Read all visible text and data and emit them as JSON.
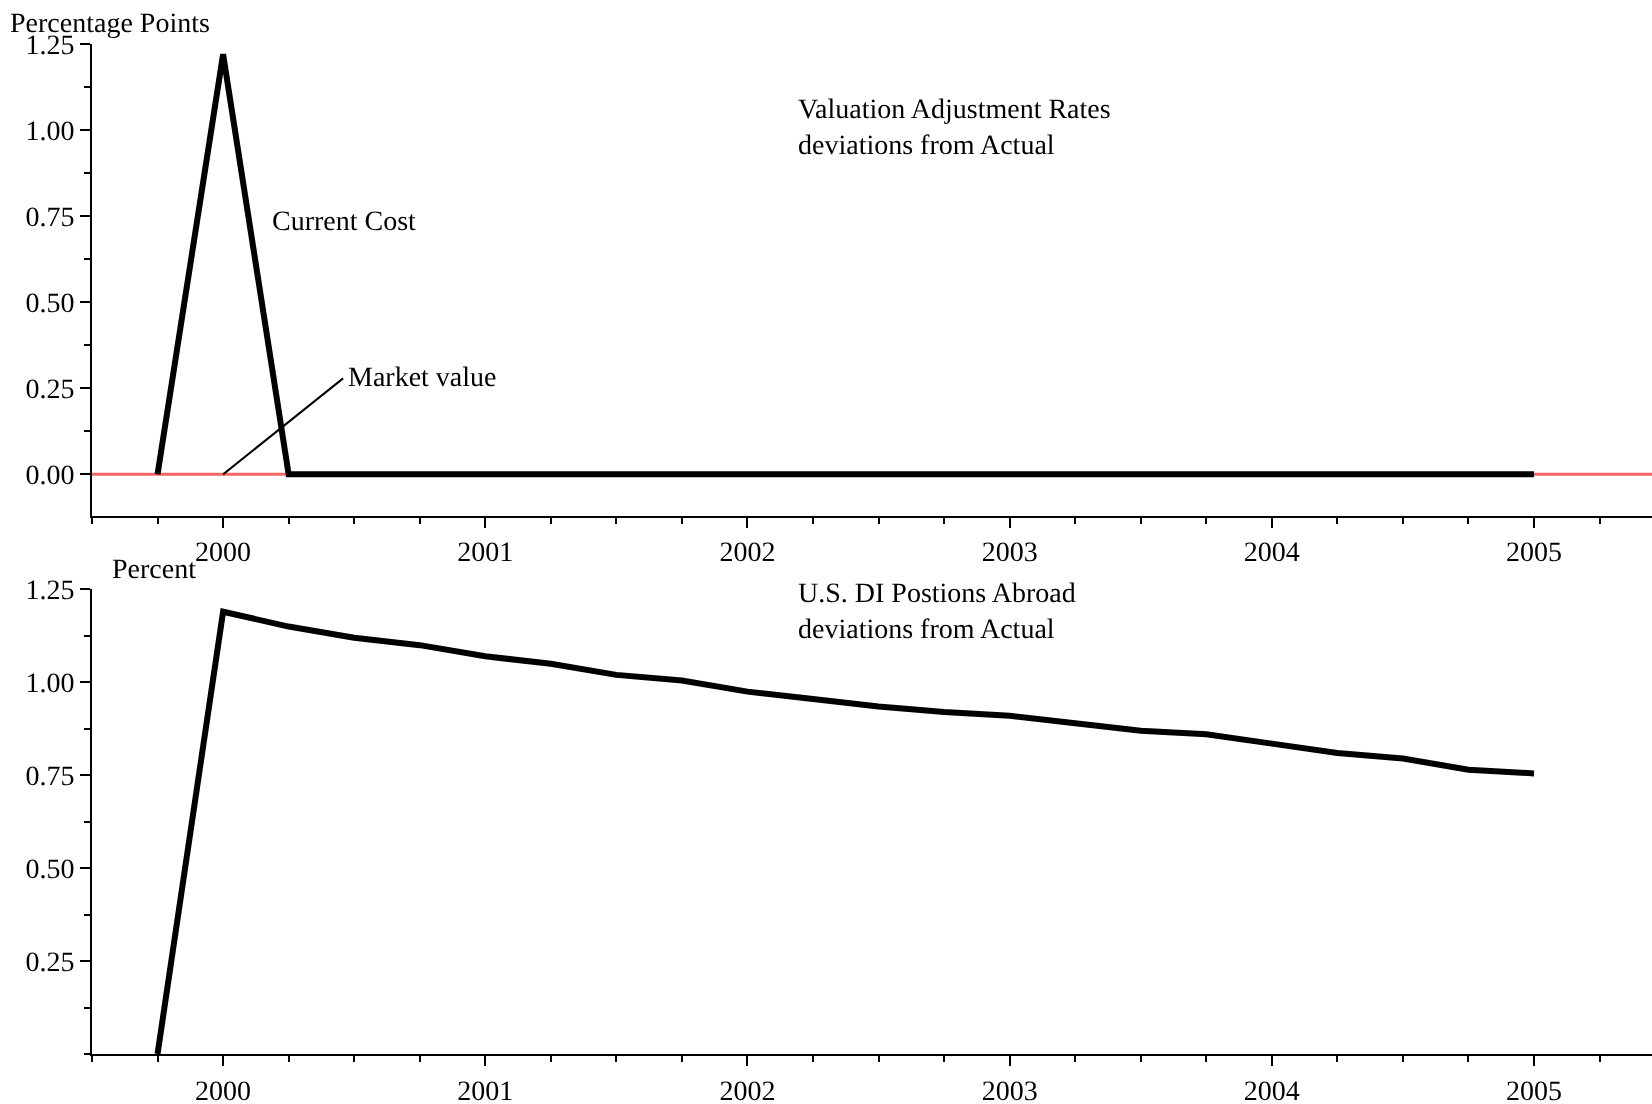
{
  "chart_data": [
    {
      "type": "line",
      "title": "Valuation Adjustment Rates\ndeviations from Actual",
      "ylabel": "Percentage Points",
      "x": [
        1999.75,
        2000,
        2000.25,
        2000.5,
        2000.75,
        2001,
        2001.25,
        2001.5,
        2001.75,
        2002,
        2002.25,
        2002.5,
        2002.75,
        2003,
        2003.25,
        2003.5,
        2003.75,
        2004,
        2004.25,
        2004.5,
        2004.75,
        2005
      ],
      "series": [
        {
          "color": "#000000",
          "values": [
            0,
            1.22,
            0,
            0,
            0,
            0,
            0,
            0,
            0,
            0,
            0,
            0,
            0,
            0,
            0,
            0,
            0,
            0,
            0,
            0,
            0,
            0
          ]
        }
      ],
      "xlim": [
        1999.5,
        2005.45
      ],
      "xticks": [
        2000,
        2001,
        2002,
        2003,
        2004,
        2005
      ],
      "ylim": [
        -0.12,
        1.25
      ],
      "yticks": [
        {
          "value": 0,
          "label": "0.00"
        },
        {
          "value": 0.25,
          "label": "0.25"
        },
        {
          "value": 0.5,
          "label": "0.50"
        },
        {
          "value": 0.75,
          "label": "0.75"
        },
        {
          "value": 1,
          "label": "1.00"
        },
        {
          "value": 1.25,
          "label": "1.25"
        }
      ],
      "ref_lines": [
        {
          "axis": "y",
          "value": 0,
          "color": "#ff6666"
        }
      ],
      "annotations": [
        "Current Cost",
        {
          "text": "Market value",
          "x": 2000,
          "y": 0
        }
      ],
      "grid": false
    },
    {
      "type": "line",
      "title": "U.S. DI Postions Abroad\ndeviations from Actual",
      "ylabel": "Percent",
      "x": [
        1999.75,
        2000,
        2000.25,
        2000.5,
        2000.75,
        2001,
        2001.25,
        2001.5,
        2001.75,
        2002,
        2002.25,
        2002.5,
        2002.75,
        2003,
        2003.25,
        2003.5,
        2003.75,
        2004,
        2004.25,
        2004.5,
        2004.75,
        2005
      ],
      "series": [
        {
          "color": "#000000",
          "values": [
            0,
            1.19,
            1.15,
            1.12,
            1.1,
            1.07,
            1.05,
            1.02,
            1.005,
            0.975,
            0.955,
            0.935,
            0.92,
            0.91,
            0.89,
            0.87,
            0.86,
            0.835,
            0.81,
            0.795,
            0.765,
            0.755
          ]
        }
      ],
      "xlim": [
        1999.5,
        2005.45
      ],
      "xticks": [
        2000,
        2001,
        2002,
        2003,
        2004,
        2005
      ],
      "ylim": [
        0,
        1.25
      ],
      "yticks": [
        {
          "value": 0.25,
          "label": "0.25"
        },
        {
          "value": 0.5,
          "label": "0.50"
        },
        {
          "value": 0.75,
          "label": "0.75"
        },
        {
          "value": 1,
          "label": "1.00"
        },
        {
          "value": 1.25,
          "label": "1.25"
        }
      ],
      "grid": false
    }
  ]
}
